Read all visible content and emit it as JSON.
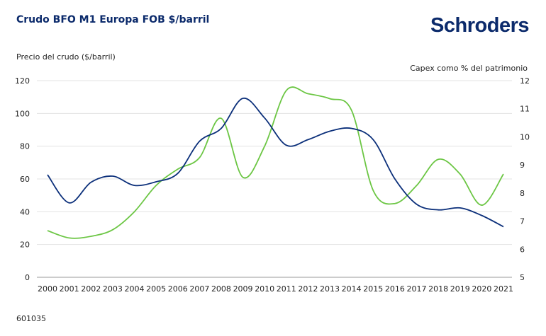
{
  "title": "Crudo BFO M1 Europa FOB $/barril",
  "logo": "Schroders",
  "footer": "601035",
  "chart_data": {
    "type": "line",
    "ylabel": "Precio del crudo ($/barril)",
    "y2label": "Capex como % del patrimonio",
    "ylim": [
      0,
      120
    ],
    "y2lim": [
      5,
      12
    ],
    "yticks": [
      0,
      20,
      40,
      60,
      80,
      100,
      120
    ],
    "y2ticks": [
      5,
      6,
      7,
      8,
      9,
      10,
      11,
      12
    ],
    "grid": true,
    "x": [
      "2000",
      "2001",
      "2002",
      "2003",
      "2004",
      "2005",
      "2006",
      "2007",
      "2008",
      "2009",
      "2010",
      "2011",
      "2012",
      "2013",
      "2014",
      "2015",
      "2016",
      "2017",
      "2018",
      "2019",
      "2020",
      "2021"
    ],
    "series": [
      {
        "axis": "left",
        "color": "#6cc644",
        "values": [
          28.5,
          24,
          25,
          29,
          40,
          56,
          66,
          73,
          97,
          61,
          80,
          114,
          112,
          109,
          102,
          53,
          45,
          56,
          72,
          63,
          44,
          63
        ]
      },
      {
        "axis": "right",
        "color": "#0b2f7a",
        "values": [
          8.65,
          7.65,
          8.38,
          8.6,
          8.27,
          8.4,
          8.7,
          9.84,
          10.3,
          11.37,
          10.67,
          9.7,
          9.9,
          10.2,
          10.3,
          9.9,
          8.5,
          7.6,
          7.4,
          7.47,
          7.2,
          6.8
        ]
      }
    ]
  }
}
